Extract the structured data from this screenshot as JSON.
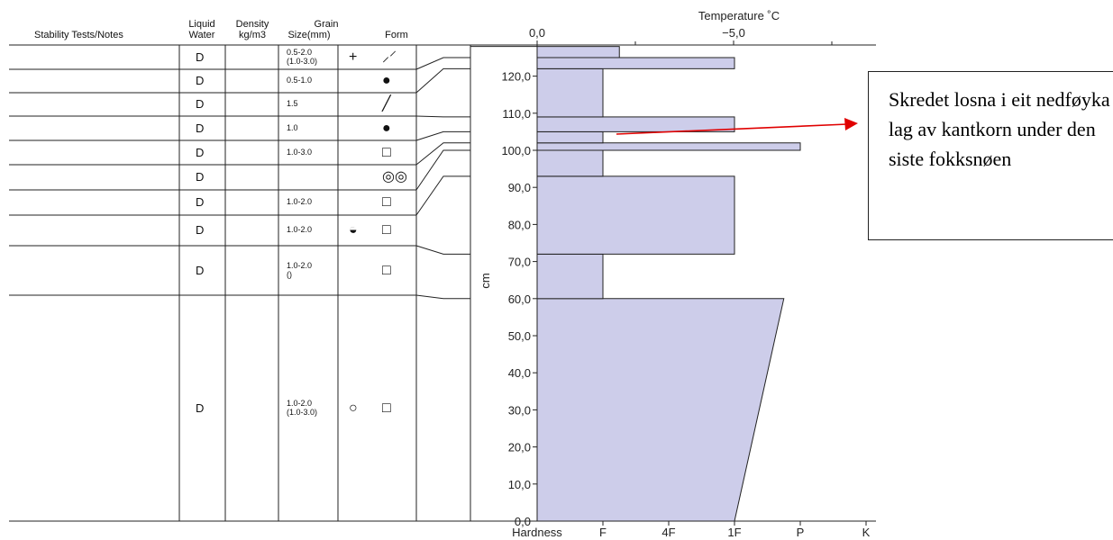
{
  "table": {
    "headers": {
      "stability": "Stability Tests/Notes",
      "water_line1": "Liquid",
      "water_line2": "Water",
      "density_line1": "Density",
      "density_line2": "kg/m3",
      "grain_line1": "Grain",
      "size": "Size(mm)",
      "form": "Form"
    },
    "rows": [
      {
        "water": "D",
        "size": [
          "0.5-2.0",
          "(1.0-3.0)"
        ],
        "grain_shape": "plus",
        "form_shape": "dashed-slash"
      },
      {
        "water": "D",
        "size": [
          "0.5-1.0"
        ],
        "grain_shape": "",
        "form_shape": "dot"
      },
      {
        "water": "D",
        "size": [
          "1.5"
        ],
        "grain_shape": "",
        "form_shape": "slash"
      },
      {
        "water": "D",
        "size": [
          "1.0"
        ],
        "grain_shape": "",
        "form_shape": "dot"
      },
      {
        "water": "D",
        "size": [
          "1.0-3.0"
        ],
        "grain_shape": "",
        "form_shape": "square"
      },
      {
        "water": "D",
        "size": [],
        "grain_shape": "",
        "form_shape": "double-ring"
      },
      {
        "water": "D",
        "size": [
          "1.0-2.0"
        ],
        "grain_shape": "",
        "form_shape": "square"
      },
      {
        "water": "D",
        "size": [
          "1.0-2.0"
        ],
        "grain_shape": "half-filled",
        "form_shape": "square"
      },
      {
        "water": "D",
        "size": [
          "1.0-2.0",
          "()"
        ],
        "grain_shape": "",
        "form_shape": "square"
      },
      {
        "water": "D",
        "size": [
          "1.0-2.0",
          "(1.0-3.0)"
        ],
        "grain_shape": "ring",
        "form_shape": "square"
      }
    ]
  },
  "chart_data": {
    "type": "bar",
    "orientation": "horizontal",
    "title": "Temperature ˚C",
    "ylabel": "cm",
    "xlabel": "Hardness",
    "hardness_ticks": [
      "F",
      "4F",
      "1F",
      "P",
      "K"
    ],
    "temperature_ticks": [
      "0,0",
      "−5,0"
    ],
    "ylim": [
      0,
      125
    ],
    "y_ticks": [
      "0,0",
      "10,0",
      "20,0",
      "30,0",
      "40,0",
      "50,0",
      "60,0",
      "70,0",
      "80,0",
      "90,0",
      "100,0",
      "110,0",
      "120,0"
    ],
    "fill_color": "#cdcdea",
    "layers": [
      {
        "bottom": 0,
        "top": 60,
        "hardness_bottom": 3.0,
        "hardness_top": 3.75
      },
      {
        "bottom": 60,
        "top": 72,
        "hardness": 1.0
      },
      {
        "bottom": 72,
        "top": 93,
        "hardness": 3.0
      },
      {
        "bottom": 93,
        "top": 100,
        "hardness": 1.0
      },
      {
        "bottom": 100,
        "top": 102,
        "hardness": 4.0
      },
      {
        "bottom": 102,
        "top": 105,
        "hardness": 1.0
      },
      {
        "bottom": 105,
        "top": 109,
        "hardness": 3.0
      },
      {
        "bottom": 109,
        "top": 122,
        "hardness": 1.0
      },
      {
        "bottom": 122,
        "top": 125,
        "hardness": 3.0
      },
      {
        "bottom": 125,
        "top": 128,
        "hardness": 1.25
      }
    ]
  },
  "annotation": {
    "text": "Skredet losna i eit nedføyka lag av kantkorn under den siste fokksnøen",
    "arrow_color": "#e00000"
  }
}
